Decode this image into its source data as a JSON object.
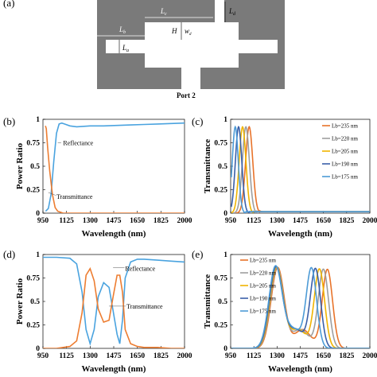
{
  "panel_labels": {
    "a": "(a)",
    "b": "(b)",
    "c": "(c)",
    "d": "(d)",
    "e": "(e)"
  },
  "diagram": {
    "labels": {
      "lc": "L",
      "lc_sub": "c",
      "ld": "L",
      "ld_sub": "d",
      "lb": "L",
      "lb_sub": "b",
      "la": "L",
      "la_sub": "a",
      "h": "H",
      "w": "w",
      "w_sub": "d"
    },
    "port": "Port 2"
  },
  "colors": {
    "orange": "#e8732a",
    "gray": "#9e9e9e",
    "yellow": "#f0b400",
    "darkblue": "#3a5fa8",
    "lightblue": "#4d9bd6",
    "refl": "#4aa3df",
    "trans": "#ed7d31"
  },
  "chart_data": [
    {
      "id": "b",
      "type": "line",
      "xlabel": "Wavelength (nm)",
      "ylabel": "Power Ratio",
      "xlim": [
        950,
        2000
      ],
      "ylim": [
        0,
        1
      ],
      "xticks": [
        "950",
        "1125",
        "1300",
        "1475",
        "1650",
        "1825",
        "2000"
      ],
      "yticks": [
        "0",
        "0.25",
        "0.5",
        "0.75",
        "1"
      ],
      "annotations": [
        "Reflectance",
        "Transmittance"
      ],
      "series": [
        {
          "name": "Reflectance",
          "color": "#4aa3df",
          "x": [
            970,
            990,
            1010,
            1030,
            1050,
            1070,
            1090,
            1110,
            1150,
            1200,
            1300,
            1400,
            1500,
            1600,
            1700,
            1800,
            1900,
            2000
          ],
          "y": [
            0.02,
            0.05,
            0.2,
            0.55,
            0.85,
            0.95,
            0.96,
            0.95,
            0.93,
            0.92,
            0.93,
            0.93,
            0.935,
            0.94,
            0.945,
            0.95,
            0.955,
            0.96
          ]
        },
        {
          "name": "Transmittance",
          "color": "#ed7d31",
          "x": [
            968,
            975,
            985,
            1000,
            1020,
            1040,
            1060,
            1080,
            1100,
            1150,
            1300,
            1500,
            2000
          ],
          "y": [
            0.93,
            0.9,
            0.7,
            0.45,
            0.2,
            0.06,
            0.02,
            0.01,
            0.0,
            0.0,
            0.0,
            0.0,
            0.0
          ]
        }
      ]
    },
    {
      "id": "c",
      "type": "line",
      "xlabel": "Wavelength (nm)",
      "ylabel": "Transmittance",
      "xlim": [
        950,
        2000
      ],
      "ylim": [
        0,
        1
      ],
      "xticks": [
        "950",
        "1125",
        "1300",
        "1475",
        "1650",
        "1825",
        "2000"
      ],
      "yticks": [
        "0",
        "0.25",
        "0.5",
        "0.75",
        "1"
      ],
      "legend": [
        "Lb=235 nm",
        "Lb=220 nm",
        "Lb=205 nm",
        "Lb=190 nm",
        "Lb=175 nm"
      ],
      "series": [
        {
          "name": "Lb=235 nm",
          "color": "#e8732a",
          "peak": 1090,
          "width": 38
        },
        {
          "name": "Lb=220 nm",
          "color": "#9e9e9e",
          "peak": 1065,
          "width": 37
        },
        {
          "name": "Lb=205 nm",
          "color": "#f0b400",
          "peak": 1040,
          "width": 36
        },
        {
          "name": "Lb=190 nm",
          "color": "#3a5fa8",
          "peak": 1010,
          "width": 34
        },
        {
          "name": "Lb=175 nm",
          "color": "#4d9bd6",
          "peak": 985,
          "width": 32
        }
      ],
      "peak_value": 0.92
    },
    {
      "id": "d",
      "type": "line",
      "xlabel": "Wavelength (nm)",
      "ylabel": "Power Ratio",
      "xlim": [
        950,
        2000
      ],
      "ylim": [
        0,
        1
      ],
      "xticks": [
        "950",
        "1125",
        "1300",
        "1475",
        "1650",
        "1825",
        "2000"
      ],
      "yticks": [
        "0",
        "0.25",
        "0.5",
        "0.75",
        "1"
      ],
      "annotations": [
        "Reflectance",
        "Transmittance"
      ],
      "series": [
        {
          "name": "Reflectance",
          "color": "#4aa3df",
          "x": [
            950,
            1050,
            1150,
            1200,
            1240,
            1270,
            1300,
            1330,
            1360,
            1400,
            1440,
            1470,
            1500,
            1520,
            1540,
            1560,
            1600,
            1650,
            1700,
            1800,
            1900,
            2000
          ],
          "y": [
            0.97,
            0.97,
            0.96,
            0.9,
            0.6,
            0.2,
            0.05,
            0.2,
            0.55,
            0.7,
            0.65,
            0.4,
            0.15,
            0.05,
            0.3,
            0.75,
            0.92,
            0.95,
            0.95,
            0.94,
            0.93,
            0.92
          ]
        },
        {
          "name": "Transmittance",
          "color": "#ed7d31",
          "x": [
            950,
            1050,
            1150,
            1200,
            1240,
            1270,
            1300,
            1330,
            1360,
            1400,
            1440,
            1470,
            1500,
            1520,
            1540,
            1560,
            1600,
            1650,
            1700,
            1800,
            1900,
            2000
          ],
          "y": [
            0.0,
            0.0,
            0.02,
            0.08,
            0.38,
            0.78,
            0.85,
            0.72,
            0.42,
            0.28,
            0.3,
            0.55,
            0.78,
            0.78,
            0.6,
            0.2,
            0.05,
            0.02,
            0.01,
            0.01,
            0.0,
            0.0
          ]
        }
      ]
    },
    {
      "id": "e",
      "type": "line",
      "xlabel": "Wavelength (nm)",
      "ylabel": "Transmittance",
      "xlim": [
        950,
        2000
      ],
      "ylim": [
        0,
        1
      ],
      "xticks": [
        "950",
        "1125",
        "1300",
        "1475",
        "1650",
        "1825",
        "2000"
      ],
      "yticks": [
        "0",
        "0.25",
        "0.5",
        "0.75",
        "1"
      ],
      "legend": [
        "Lb=235 nm",
        "Lb=220 nm",
        "Lb=205 nm",
        "Lb=190 nm",
        "Lb=175 nm"
      ],
      "series": [
        {
          "name": "Lb=235 nm",
          "color": "#e8732a",
          "p1": 1305,
          "p2": 1680
        },
        {
          "name": "Lb=220 nm",
          "color": "#9e9e9e",
          "p1": 1300,
          "p2": 1650
        },
        {
          "name": "Lb=205 nm",
          "color": "#f0b400",
          "p1": 1296,
          "p2": 1620
        },
        {
          "name": "Lb=190 nm",
          "color": "#3a5fa8",
          "p1": 1292,
          "p2": 1590
        },
        {
          "name": "Lb=175 nm",
          "color": "#4d9bd6",
          "p1": 1288,
          "p2": 1560
        }
      ],
      "peak_values": [
        0.86,
        0.84
      ]
    }
  ]
}
